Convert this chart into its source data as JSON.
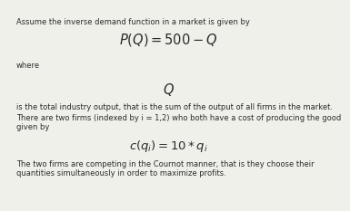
{
  "bg_color": "#f0f0eb",
  "text_color": "#2a2a2a",
  "line1": "Assume the inverse demand function in a market is given by",
  "eq1": "$P(Q) = 500 - Q$",
  "where_text": "where",
  "eq2": "$Q$",
  "line3": "is the total industry output, that is the sum of the output of all firms in the market.",
  "line4a": "There are two firms (indexed by i = 1,2) who both have a cost of producing the good",
  "line4b": "given by",
  "eq3": "$c(q_i) = 10 * q_i$",
  "line5a": "The two firms are competing in the Cournot manner, that is they choose their",
  "line5b": "quantities simultaneously in order to maximize profits.",
  "fs_body": 6.0,
  "fs_eq_large": 10.5,
  "fs_eq_medium": 9.5
}
